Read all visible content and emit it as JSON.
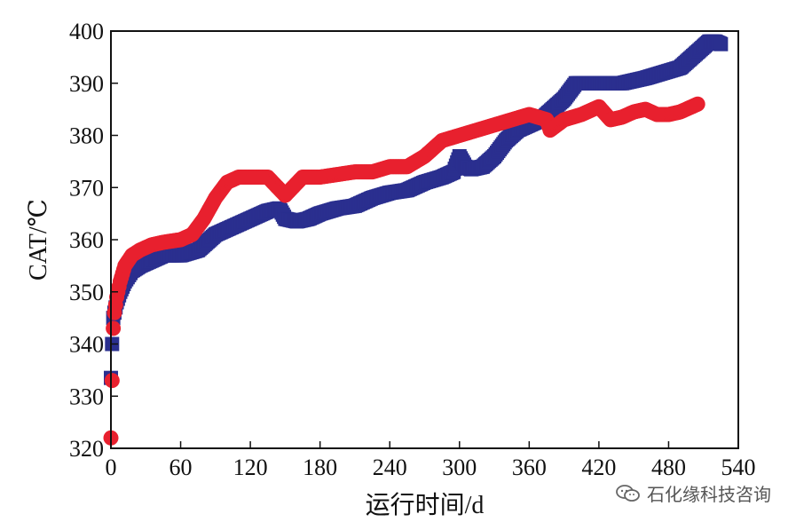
{
  "chart_data": {
    "type": "scatter",
    "title": "",
    "xlabel": "运行时间/d",
    "ylabel": "CAT/℃",
    "xlim": [
      0,
      540
    ],
    "ylim": [
      320,
      400
    ],
    "xticks": [
      0,
      60,
      120,
      180,
      240,
      300,
      360,
      420,
      480,
      540
    ],
    "yticks": [
      320,
      330,
      340,
      350,
      360,
      370,
      380,
      390,
      400
    ],
    "grid": false,
    "legend": "none",
    "series": [
      {
        "color": "#2a2f8f",
        "marker": "square",
        "x": [
          0,
          1,
          2,
          3,
          5,
          8,
          12,
          18,
          25,
          35,
          45,
          60,
          75,
          90,
          105,
          120,
          135,
          145,
          150,
          160,
          170,
          180,
          195,
          210,
          225,
          240,
          255,
          270,
          285,
          295,
          300,
          305,
          310,
          320,
          330,
          340,
          350,
          360,
          370,
          380,
          390,
          400,
          410,
          420,
          440,
          460,
          475,
          490,
          500,
          510,
          515,
          520,
          525
        ],
        "y": [
          333.5,
          340,
          345,
          346,
          348,
          350,
          352,
          354,
          355,
          356,
          357,
          357,
          358,
          361,
          362.5,
          364,
          365.5,
          366,
          364,
          363.5,
          364,
          365,
          366,
          366.5,
          368,
          369,
          369.5,
          371,
          372,
          373,
          376,
          374,
          373.5,
          374,
          376,
          379,
          381,
          382,
          383,
          385,
          387,
          390,
          390,
          390,
          390,
          391,
          392,
          393,
          395,
          397,
          398,
          398,
          397.5
        ]
      },
      {
        "color": "#e8202e",
        "marker": "circle",
        "x": [
          0,
          1,
          2,
          3,
          5,
          8,
          12,
          18,
          25,
          35,
          45,
          60,
          70,
          80,
          90,
          100,
          110,
          120,
          135,
          150,
          165,
          180,
          195,
          210,
          225,
          240,
          255,
          270,
          285,
          300,
          315,
          330,
          345,
          360,
          375,
          378,
          390,
          405,
          420,
          430,
          440,
          450,
          460,
          470,
          480,
          490,
          500,
          505
        ],
        "y": [
          322,
          333,
          343,
          346,
          349,
          352,
          355,
          357,
          358,
          359,
          359.5,
          360,
          361,
          364,
          368,
          371,
          372,
          372,
          372,
          368.5,
          372,
          372,
          372.5,
          373,
          373,
          374,
          374,
          376,
          379,
          380,
          381,
          382,
          383,
          384,
          383,
          381,
          383,
          384,
          385.5,
          383,
          383.5,
          384.5,
          385,
          384,
          384,
          384.5,
          385.5,
          386
        ]
      }
    ]
  },
  "watermark": {
    "text": "石化缘科技咨询",
    "icon": "wechat-icon"
  }
}
